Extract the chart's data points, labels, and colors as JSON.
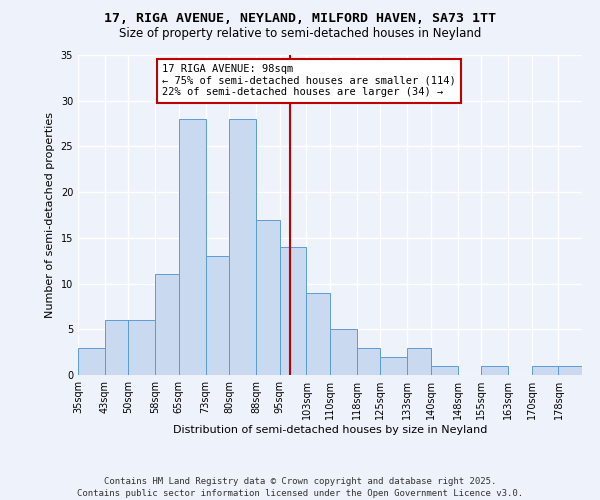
{
  "title": "17, RIGA AVENUE, NEYLAND, MILFORD HAVEN, SA73 1TT",
  "subtitle": "Size of property relative to semi-detached houses in Neyland",
  "xlabel": "Distribution of semi-detached houses by size in Neyland",
  "ylabel": "Number of semi-detached properties",
  "footer": "Contains HM Land Registry data © Crown copyright and database right 2025.\nContains public sector information licensed under the Open Government Licence v3.0.",
  "bins": [
    35,
    43,
    50,
    58,
    65,
    73,
    80,
    88,
    95,
    103,
    110,
    118,
    125,
    133,
    140,
    148,
    155,
    163,
    170,
    178,
    185
  ],
  "counts": [
    3,
    6,
    6,
    11,
    28,
    13,
    28,
    17,
    14,
    9,
    5,
    3,
    2,
    3,
    1,
    0,
    1,
    0,
    1,
    1
  ],
  "bar_facecolor": "#c9d9f0",
  "bar_edgecolor": "#5b9bd5",
  "property_value": 98,
  "vline_color": "#c00000",
  "annotation_text": "17 RIGA AVENUE: 98sqm\n← 75% of semi-detached houses are smaller (114)\n22% of semi-detached houses are larger (34) →",
  "annotation_box_edgecolor": "#c00000",
  "annotation_box_facecolor": "#ffffff",
  "ylim": [
    0,
    35
  ],
  "yticks": [
    0,
    5,
    10,
    15,
    20,
    25,
    30,
    35
  ],
  "background_color": "#eef2fa",
  "grid_color": "#ffffff",
  "title_fontsize": 9.5,
  "subtitle_fontsize": 8.5,
  "axis_label_fontsize": 8,
  "tick_fontsize": 7,
  "annotation_fontsize": 7.5,
  "footer_fontsize": 6.5
}
